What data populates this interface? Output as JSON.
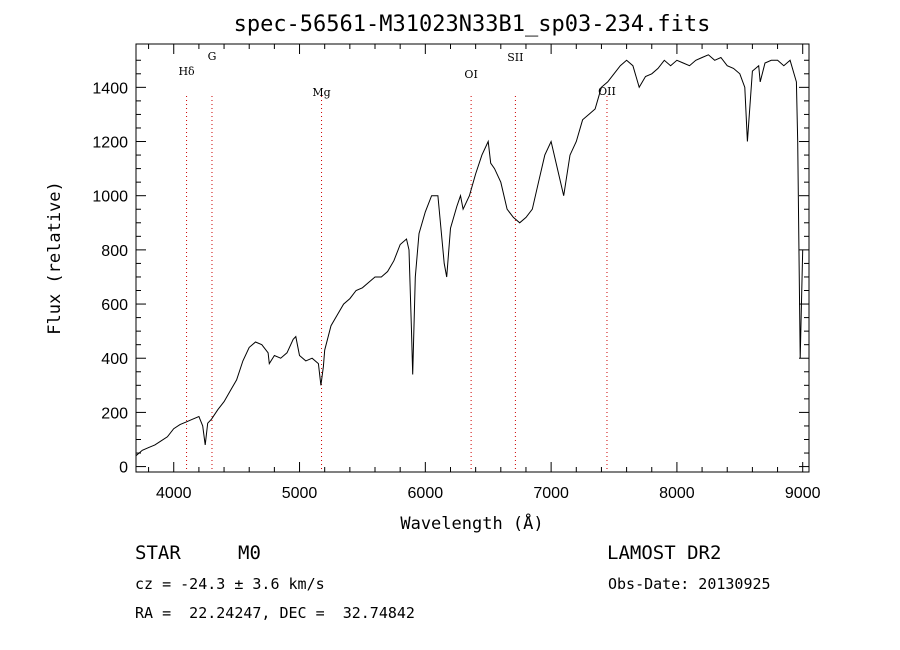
{
  "chart_data": {
    "type": "line",
    "title": "spec-56561-M31023N33B1_sp03-234.fits",
    "xlabel": "Wavelength (Å)",
    "ylabel": "Flux (relative)",
    "xlim": [
      3700,
      9050
    ],
    "ylim": [
      -20,
      1560
    ],
    "x_ticks": [
      4000,
      5000,
      6000,
      7000,
      8000,
      9000
    ],
    "y_ticks": [
      0,
      200,
      400,
      600,
      800,
      1000,
      1200,
      1400
    ],
    "line_color": "#000000",
    "marker_color": "#cc0000",
    "spectral_lines": [
      {
        "label": "Hδ",
        "wavelength": 4102
      },
      {
        "label": "G",
        "wavelength": 4304
      },
      {
        "label": "Mg",
        "wavelength": 5175
      },
      {
        "label": "OI",
        "wavelength": 6364
      },
      {
        "label": "SII",
        "wavelength": 6716
      },
      {
        "label": "OII",
        "wavelength": 7444
      }
    ],
    "series": [
      {
        "x": [
          3700,
          3750,
          3800,
          3850,
          3900,
          3950,
          4000,
          4050,
          4100,
          4150,
          4200,
          4230,
          4250,
          4270,
          4300,
          4350,
          4400,
          4450,
          4500,
          4550,
          4600,
          4650,
          4700,
          4750,
          4760,
          4800,
          4850,
          4900,
          4950,
          4970,
          5000,
          5050,
          5100,
          5150,
          5170,
          5190,
          5200,
          5250,
          5300,
          5350,
          5400,
          5450,
          5500,
          5550,
          5600,
          5650,
          5700,
          5750,
          5800,
          5850,
          5870,
          5890,
          5900,
          5920,
          5950,
          6000,
          6050,
          6100,
          6150,
          6170,
          6200,
          6250,
          6280,
          6300,
          6350,
          6400,
          6450,
          6500,
          6520,
          6550,
          6600,
          6650,
          6700,
          6750,
          6800,
          6850,
          6900,
          6950,
          7000,
          7050,
          7100,
          7150,
          7200,
          7250,
          7300,
          7350,
          7400,
          7450,
          7500,
          7550,
          7600,
          7650,
          7700,
          7750,
          7800,
          7850,
          7900,
          7950,
          8000,
          8050,
          8100,
          8150,
          8200,
          8250,
          8300,
          8350,
          8400,
          8450,
          8500,
          8540,
          8560,
          8600,
          8650,
          8662,
          8700,
          8750,
          8800,
          8850,
          8900,
          8950,
          8960,
          8980,
          9000
        ],
        "values": [
          40,
          60,
          70,
          80,
          95,
          110,
          140,
          155,
          165,
          175,
          185,
          150,
          80,
          160,
          175,
          210,
          240,
          280,
          320,
          390,
          440,
          460,
          450,
          420,
          380,
          410,
          400,
          420,
          470,
          480,
          410,
          390,
          400,
          380,
          300,
          370,
          430,
          520,
          560,
          600,
          620,
          650,
          660,
          680,
          700,
          700,
          720,
          760,
          820,
          840,
          800,
          500,
          340,
          700,
          860,
          940,
          1000,
          1000,
          750,
          700,
          880,
          960,
          1000,
          950,
          1000,
          1080,
          1150,
          1200,
          1120,
          1100,
          1050,
          950,
          920,
          900,
          920,
          950,
          1050,
          1150,
          1200,
          1100,
          1000,
          1150,
          1200,
          1280,
          1300,
          1320,
          1400,
          1420,
          1450,
          1480,
          1500,
          1480,
          1400,
          1440,
          1450,
          1470,
          1500,
          1480,
          1500,
          1490,
          1480,
          1500,
          1510,
          1520,
          1500,
          1510,
          1480,
          1470,
          1450,
          1400,
          1200,
          1460,
          1480,
          1420,
          1490,
          1500,
          1500,
          1480,
          1500,
          1420,
          1200,
          400,
          800
        ]
      }
    ]
  },
  "info": {
    "object_class": "STAR",
    "subclass": "M0",
    "survey": "LAMOST DR2",
    "redshift_text": "cz = -24.3 ± 3.6 km/s",
    "obs_date_text": "Obs-Date: 20130925",
    "coords_text": "RA =  22.24247, DEC =  32.74842"
  }
}
